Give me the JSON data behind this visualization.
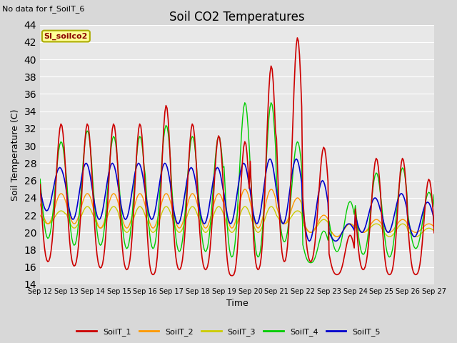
{
  "title": "Soil CO2 Temperatures",
  "xlabel": "Time",
  "ylabel": "Soil Temperature (C)",
  "ylim": [
    14,
    44
  ],
  "yticks": [
    14,
    16,
    18,
    20,
    22,
    24,
    26,
    28,
    30,
    32,
    34,
    36,
    38,
    40,
    42,
    44
  ],
  "xtick_labels": [
    "Sep 12",
    "Sep 13",
    "Sep 14",
    "Sep 15",
    "Sep 16",
    "Sep 17",
    "Sep 18",
    "Sep 19",
    "Sep 20",
    "Sep 21",
    "Sep 22",
    "Sep 23",
    "Sep 24",
    "Sep 25",
    "Sep 26",
    "Sep 27"
  ],
  "annotation_text": "No data for f_SoilT_6",
  "legend_label": "SI_soilco2",
  "colors": {
    "SoilT_1": "#cc0000",
    "SoilT_2": "#ff9900",
    "SoilT_3": "#cccc00",
    "SoilT_4": "#00cc00",
    "SoilT_5": "#0000cc"
  },
  "legend_names": [
    "SoilT_1",
    "SoilT_2",
    "SoilT_3",
    "SoilT_4",
    "SoilT_5"
  ],
  "background_color": "#e8e8e8",
  "grid_color": "#ffffff",
  "fig_width": 6.4,
  "fig_height": 4.8,
  "dpi": 100
}
